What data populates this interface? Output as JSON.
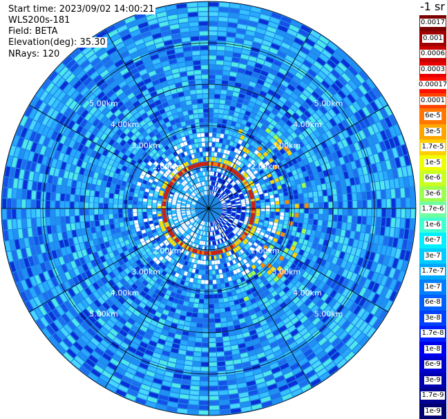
{
  "header": {
    "start_time": "Start time: 2023/09/02 14:00:21",
    "instrument": "WLS200s-181",
    "field": "Field: BETA",
    "elevation": "Elevation(deg): 35.30",
    "nrays": "NRays: 120"
  },
  "range_labels": [
    "2.00km",
    "3.00km",
    "4.00km",
    "5.00km"
  ],
  "colorbar": {
    "unit": "-1 sr",
    "labels": [
      "0.0017",
      "0.001",
      "0.0006",
      "0.0003",
      "0.00017",
      "0.0001",
      "6e-5",
      "3e-5",
      "1.7e-5",
      "1e-5",
      "6e-6",
      "3e-6",
      "1.7e-6",
      "1e-6",
      "6e-7",
      "3e-7",
      "1.7e-7",
      "1e-7",
      "6e-8",
      "3e-8",
      "1.7e-8",
      "1e-8",
      "6e-9",
      "3e-9",
      "1.7e-9",
      "1e-9"
    ],
    "colors": [
      "#7a0000",
      "#a00000",
      "#c80000",
      "#e80000",
      "#ff1000",
      "#ff4400",
      "#ff7700",
      "#ffa500",
      "#ffd000",
      "#f0ff00",
      "#c8ff20",
      "#9cff50",
      "#70ffa0",
      "#40ffd0",
      "#00f0ff",
      "#00ccff",
      "#00a8ff",
      "#0080ff",
      "#0060ff",
      "#0040ff",
      "#0020ff",
      "#0000f0",
      "#0000d0",
      "#0000b0",
      "#000090",
      "#000070"
    ]
  },
  "colors": {
    "background_field": "#1e88e5",
    "ring_high": "#d81b00"
  }
}
